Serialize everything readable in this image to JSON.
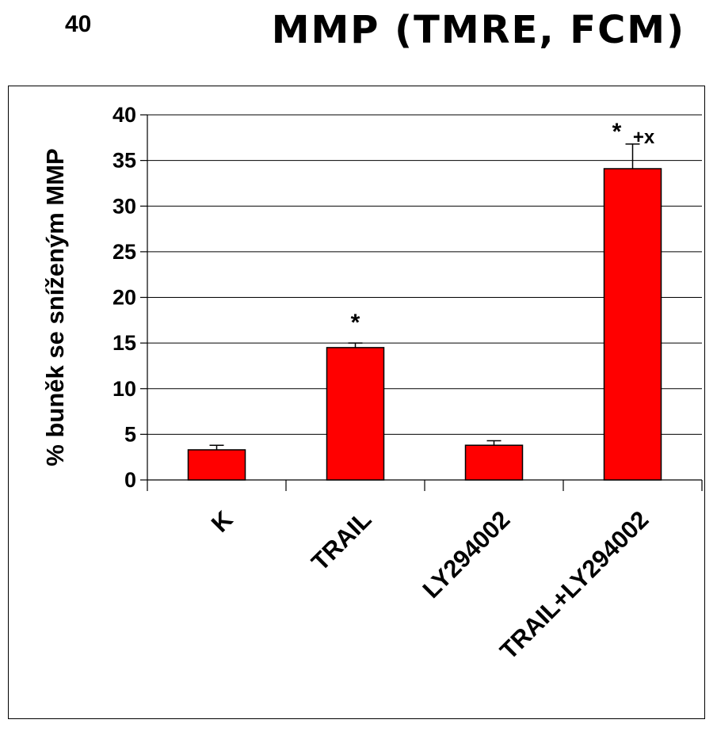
{
  "slide": {
    "number": "40",
    "title": "MMP (TMRE, FCM)"
  },
  "chart_data": {
    "type": "bar",
    "title": "MMP (TMRE, FCM)",
    "xlabel": "",
    "ylabel": "% buněk se sníženým MMP",
    "ylim": [
      0,
      40
    ],
    "yticks": [
      0,
      5,
      10,
      15,
      20,
      25,
      30,
      35,
      40
    ],
    "grid": true,
    "categories": [
      "K",
      "TRAIL",
      "LY294002",
      "TRAIL+LY294002"
    ],
    "values": [
      3.3,
      14.5,
      3.8,
      34.1
    ],
    "errors": [
      0.5,
      0.5,
      0.5,
      2.7
    ],
    "annotations": [
      "",
      "*",
      "",
      "*"
    ],
    "annotations_secondary": [
      "",
      "",
      "",
      "+x"
    ],
    "colors": {
      "bar": "#ff0000",
      "bar_edge": "#000000"
    }
  }
}
